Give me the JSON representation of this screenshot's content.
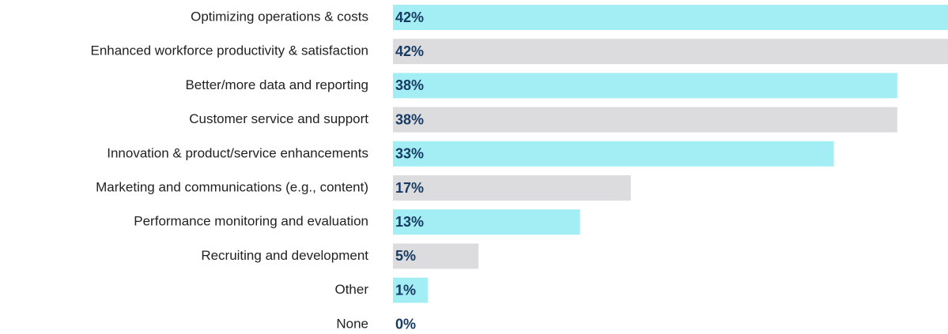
{
  "chart_data": {
    "type": "bar",
    "orientation": "horizontal",
    "categories": [
      "Optimizing operations & costs",
      "Enhanced workforce productivity & satisfaction",
      "Better/more data and reporting",
      "Customer service and support",
      "Innovation & product/service enhancements",
      "Marketing and communications (e.g., content)",
      "Performance monitoring and evaluation",
      "Recruiting and development",
      "Other",
      "None"
    ],
    "values": [
      42,
      42,
      38,
      38,
      33,
      17,
      13,
      5,
      1,
      0
    ],
    "value_labels": [
      "42%",
      "42%",
      "38%",
      "38%",
      "33%",
      "17%",
      "13%",
      "5%",
      "1%",
      "0%"
    ],
    "colors": [
      "#a3eef4",
      "#dcdcdf",
      "#a3eef4",
      "#dcdcdf",
      "#a3eef4",
      "#dcdcdf",
      "#a3eef4",
      "#dcdcdf",
      "#a3eef4",
      "#dcdcdf"
    ],
    "xlim": [
      0,
      42
    ]
  }
}
